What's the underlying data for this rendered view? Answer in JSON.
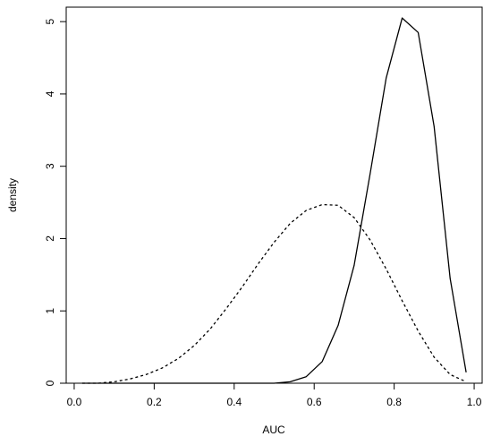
{
  "chart_data": {
    "type": "line",
    "title": "",
    "xlabel": "AUC",
    "ylabel": "density",
    "xlim": [
      -0.02,
      1.02
    ],
    "ylim": [
      0,
      5.2
    ],
    "x_ticks": [
      "0.0",
      "0.2",
      "0.4",
      "0.6",
      "0.8",
      "1.0"
    ],
    "y_ticks": [
      "0",
      "1",
      "2",
      "3",
      "4",
      "5"
    ],
    "grid": false,
    "legend": null,
    "series": [
      {
        "style": "solid",
        "color": "#000000",
        "x": [
          0.02,
          0.06,
          0.1,
          0.14,
          0.18,
          0.22,
          0.26,
          0.3,
          0.34,
          0.38,
          0.42,
          0.46,
          0.5,
          0.54,
          0.58,
          0.62,
          0.66,
          0.7,
          0.74,
          0.78,
          0.82,
          0.86,
          0.9,
          0.94,
          0.98
        ],
        "y": [
          0.0,
          0.0,
          0.0,
          0.0,
          0.0,
          0.0,
          0.0,
          0.0,
          0.0,
          0.0,
          0.0,
          0.0,
          0.0,
          0.02,
          0.09,
          0.3,
          0.8,
          1.63,
          2.9,
          4.22,
          5.05,
          4.85,
          3.55,
          1.45,
          0.15
        ]
      },
      {
        "style": "dashed",
        "color": "#000000",
        "x": [
          0.02,
          0.06,
          0.1,
          0.14,
          0.18,
          0.22,
          0.26,
          0.3,
          0.34,
          0.38,
          0.42,
          0.46,
          0.5,
          0.54,
          0.58,
          0.62,
          0.66,
          0.7,
          0.74,
          0.78,
          0.82,
          0.86,
          0.9,
          0.94,
          0.98
        ],
        "y": [
          0.0,
          0.0,
          0.02,
          0.06,
          0.12,
          0.21,
          0.34,
          0.52,
          0.75,
          1.03,
          1.33,
          1.65,
          1.95,
          2.21,
          2.39,
          2.47,
          2.46,
          2.29,
          1.98,
          1.58,
          1.14,
          0.72,
          0.36,
          0.12,
          0.02
        ]
      }
    ]
  }
}
